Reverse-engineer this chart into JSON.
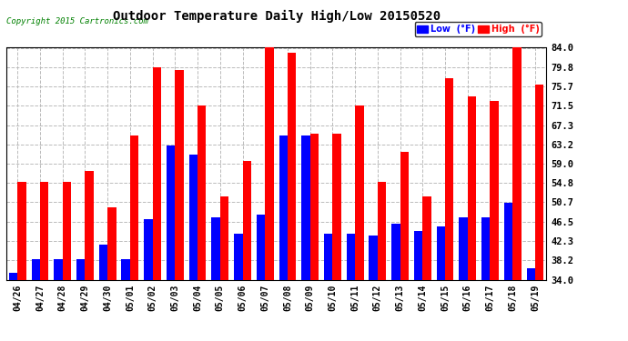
{
  "title": "Outdoor Temperature Daily High/Low 20150520",
  "copyright": "Copyright 2015 Cartronics.com",
  "ylabel_right_ticks": [
    34.0,
    38.2,
    42.3,
    46.5,
    50.7,
    54.8,
    59.0,
    63.2,
    67.3,
    71.5,
    75.7,
    79.8,
    84.0
  ],
  "ylim": [
    34.0,
    84.0
  ],
  "dates": [
    "04/26",
    "04/27",
    "04/28",
    "04/29",
    "04/30",
    "05/01",
    "05/02",
    "05/03",
    "05/04",
    "05/05",
    "05/06",
    "05/07",
    "05/08",
    "05/09",
    "05/10",
    "05/11",
    "05/12",
    "05/13",
    "05/14",
    "05/15",
    "05/16",
    "05/17",
    "05/18",
    "05/19"
  ],
  "high": [
    55.0,
    55.0,
    55.0,
    57.5,
    49.5,
    65.0,
    79.8,
    79.2,
    71.5,
    52.0,
    59.5,
    84.0,
    83.0,
    65.5,
    65.5,
    71.5,
    55.0,
    61.5,
    52.0,
    77.5,
    73.5,
    72.5,
    84.0,
    76.0
  ],
  "low": [
    35.5,
    38.5,
    38.5,
    38.5,
    41.5,
    38.5,
    47.0,
    63.0,
    61.0,
    47.5,
    44.0,
    48.0,
    65.0,
    65.0,
    44.0,
    44.0,
    43.5,
    46.0,
    44.5,
    45.5,
    47.5,
    47.5,
    50.5,
    36.5
  ],
  "high_color": "#FF0000",
  "low_color": "#0000FF",
  "bg_color": "#FFFFFF",
  "grid_color": "#AAAAAA",
  "bar_width": 0.38,
  "legend_low_label": "Low  (°F)",
  "legend_high_label": "High  (°F)"
}
